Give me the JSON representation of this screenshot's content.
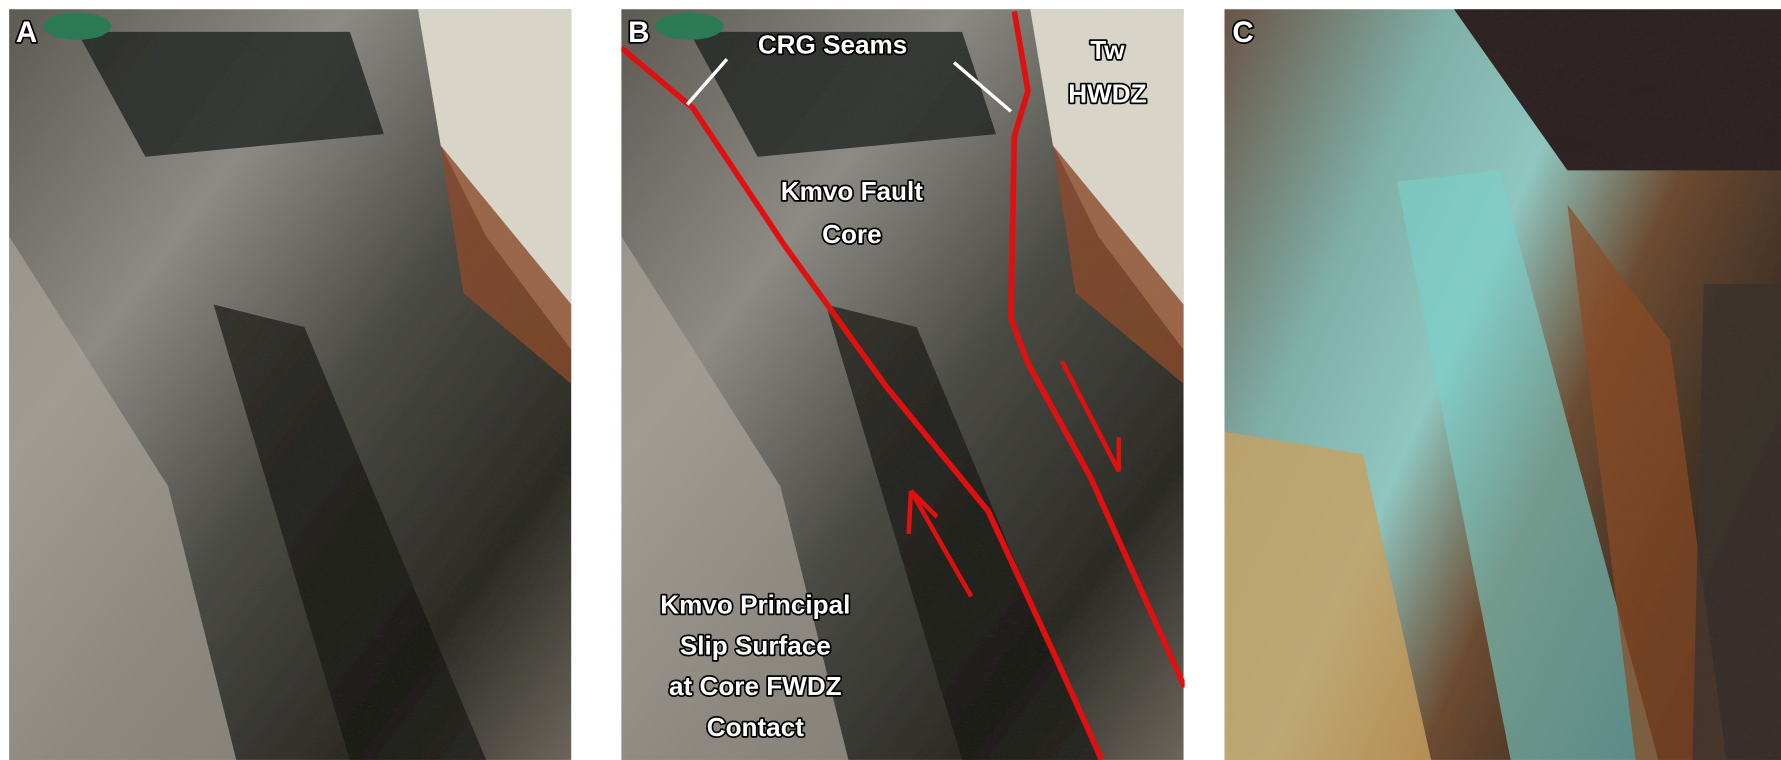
{
  "panels": [
    {
      "label": "A"
    },
    {
      "label": "B",
      "annotations": {
        "crg": "CRG Seams",
        "tw": [
          "Tw",
          "HWDZ"
        ],
        "core": [
          "Kmvo Fault",
          "Core"
        ],
        "slip": [
          "Kmvo Principal",
          "Slip Surface",
          "at Core FWDZ",
          "Contact"
        ]
      }
    },
    {
      "label": "C"
    }
  ]
}
